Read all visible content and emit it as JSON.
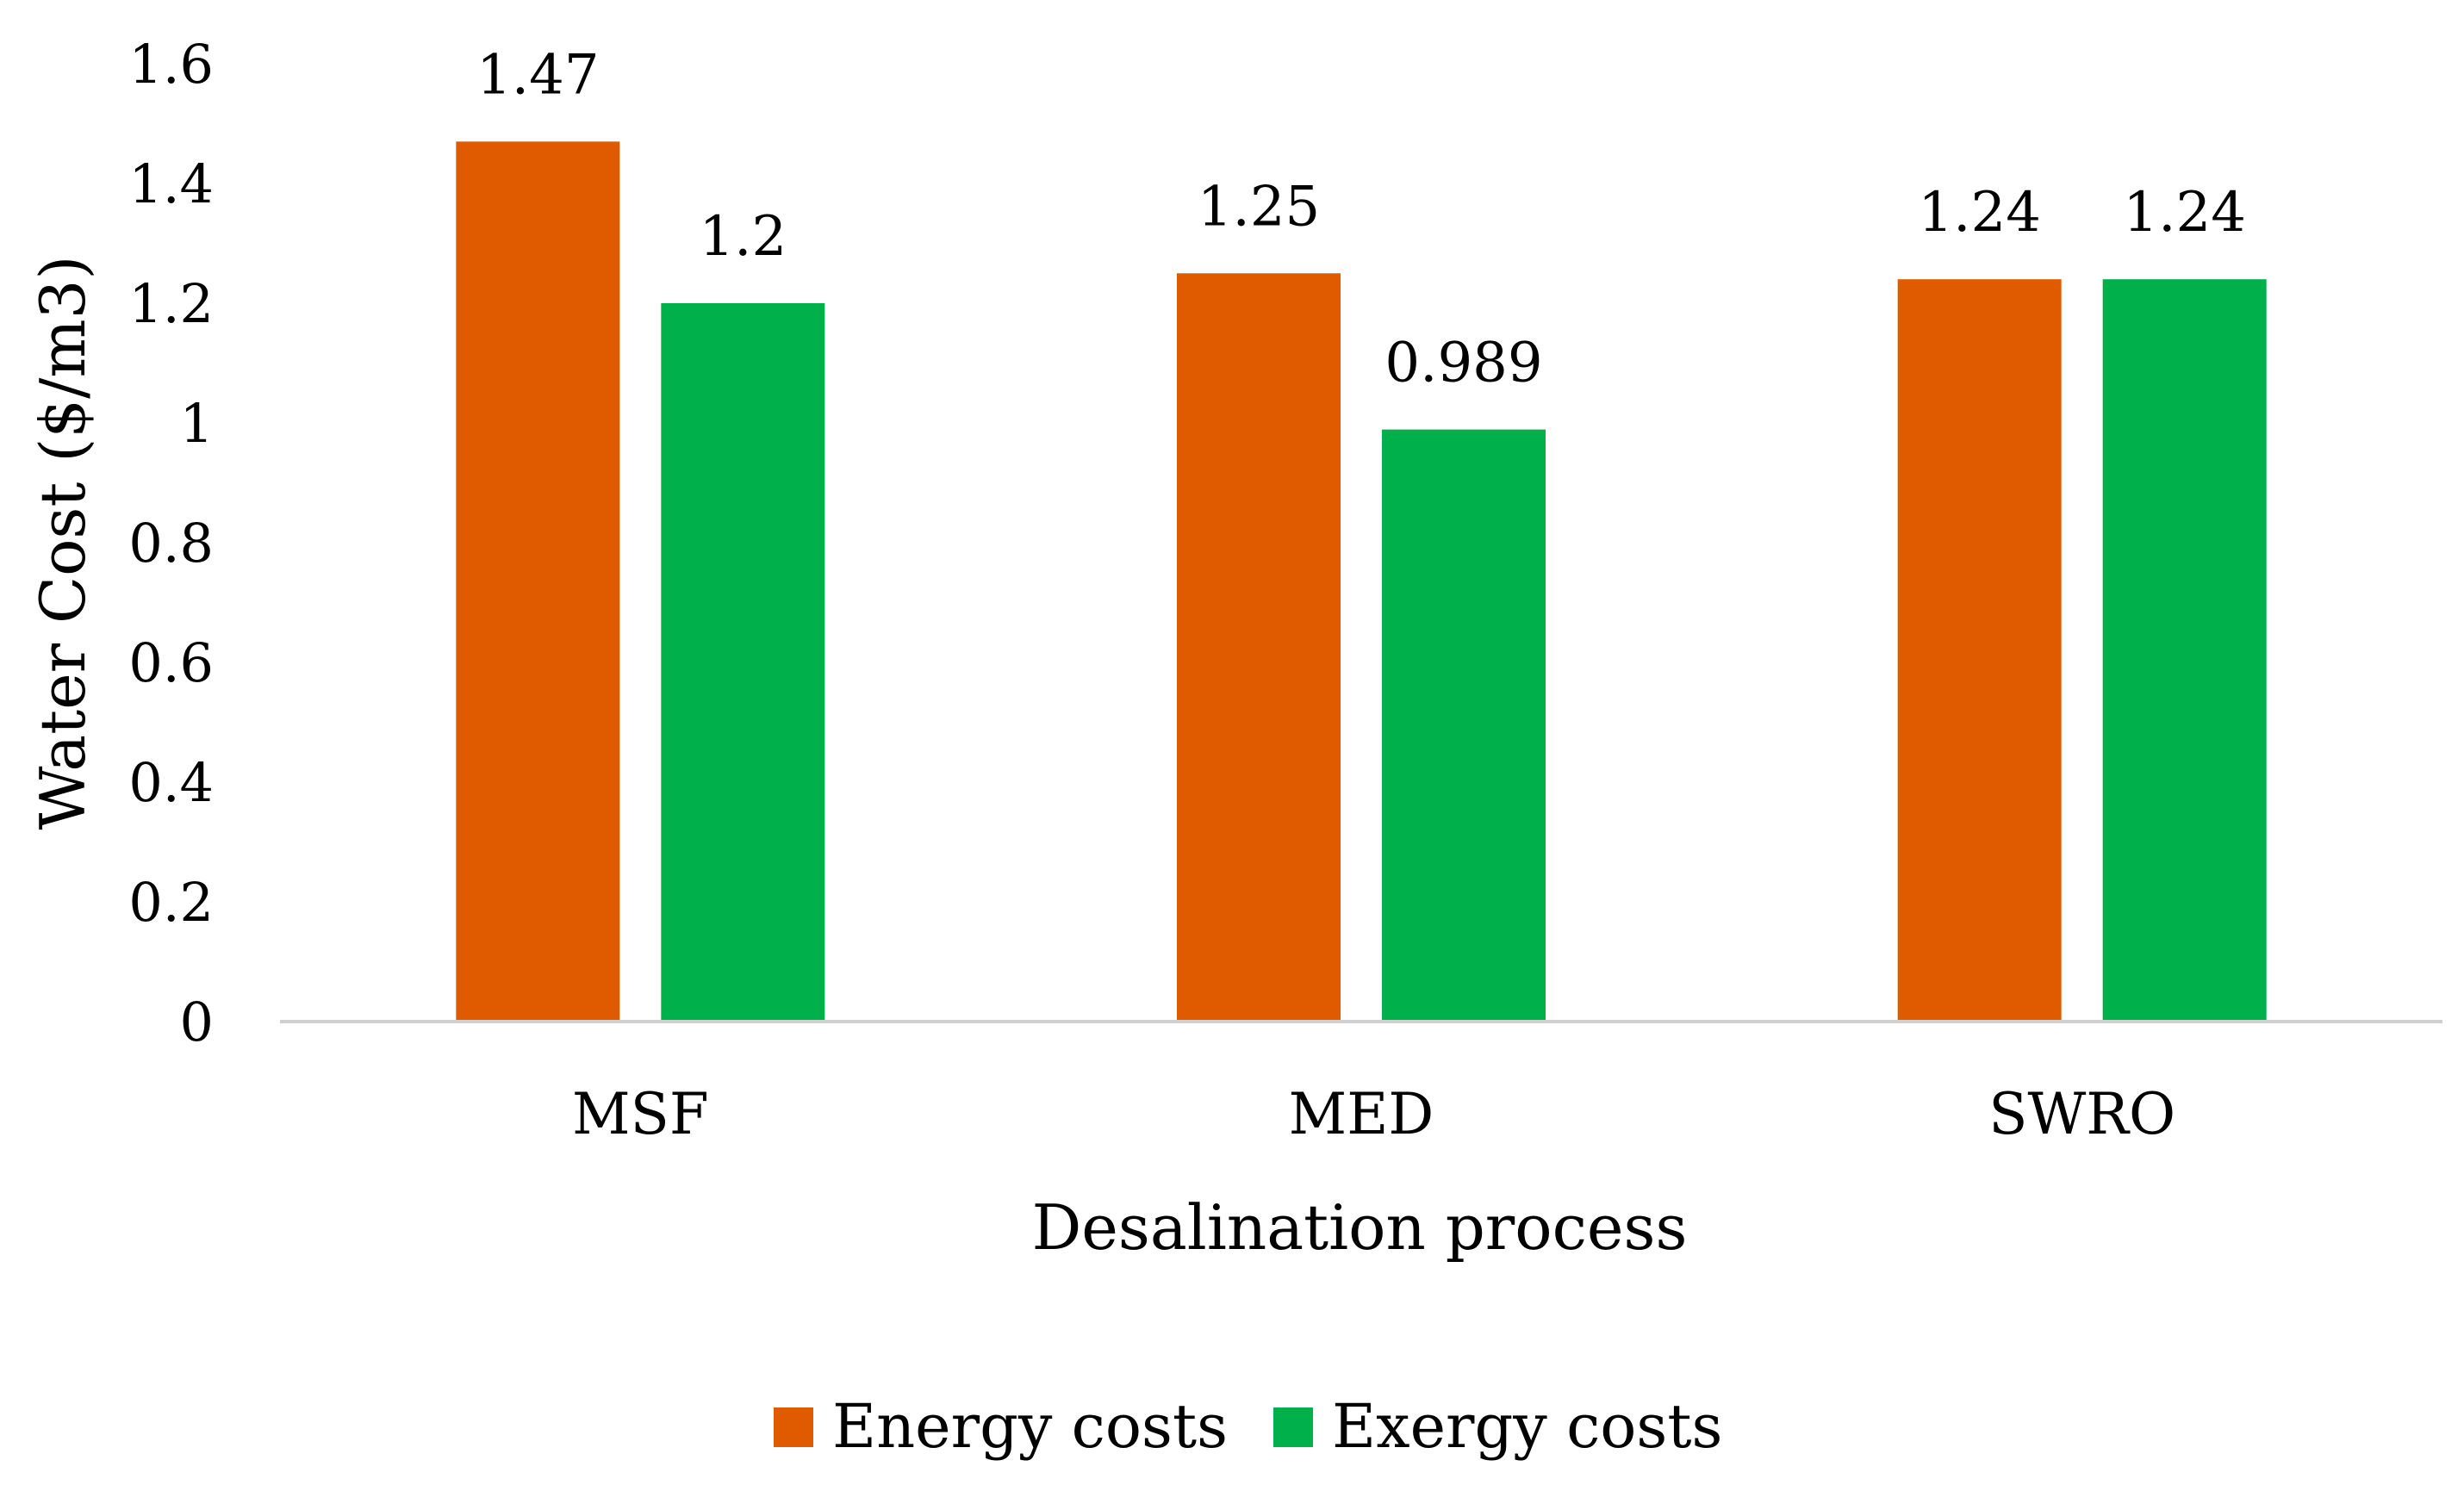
{
  "chart_data": {
    "type": "bar",
    "title": "",
    "xlabel": "Desalination process",
    "ylabel": "Water Cost ($/m3)",
    "categories": [
      "MSF",
      "MED",
      "SWRO"
    ],
    "series": [
      {
        "name": "Energy costs",
        "color": "#E05A00",
        "values": [
          1.47,
          1.25,
          1.24
        ],
        "labels": [
          "1.47",
          "1.25",
          "1.24"
        ]
      },
      {
        "name": "Exergy costs",
        "color": "#00B04A",
        "values": [
          1.2,
          0.989,
          1.24
        ],
        "labels": [
          "1.2",
          "0.989",
          "1.24"
        ]
      }
    ],
    "ylim": [
      0,
      1.6
    ],
    "yticks": [
      "0",
      "0.2",
      "0.4",
      "0.6",
      "0.8",
      "1",
      "1.2",
      "1.4",
      "1.6"
    ],
    "grid": false,
    "legend": "bottom-center"
  }
}
